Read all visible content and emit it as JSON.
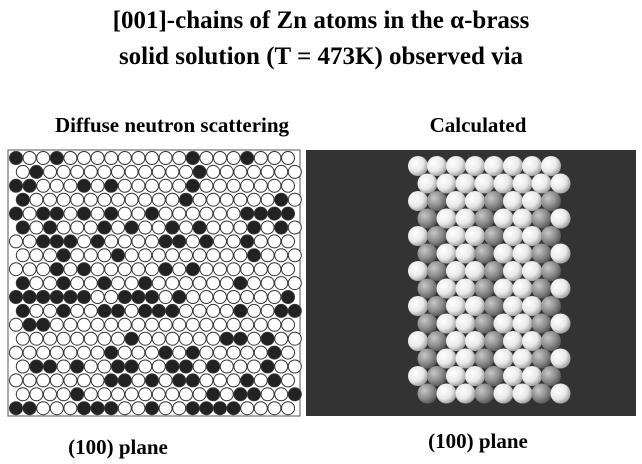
{
  "title": {
    "lines": [
      "[001]-chains of Zn atoms in the α-brass",
      "solid solution (T = 473K) observed via"
    ]
  },
  "panels": [
    {
      "heading": "Diffuse neutron scattering",
      "caption": "(100) plane"
    },
    {
      "heading": "Calculated",
      "caption": "(100) plane"
    }
  ]
}
